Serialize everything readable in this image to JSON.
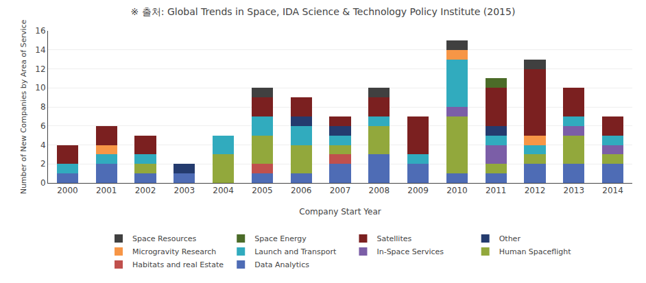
{
  "chart_data": {
    "type": "bar",
    "stacked": true,
    "title": "※ 출처: Global Trends in Space, IDA Science & Technology Policy Institute (2015)",
    "xlabel": "Company Start Year",
    "ylabel": "Number of New Companies by Area of Service",
    "categories": [
      "2000",
      "2001",
      "2002",
      "2003",
      "2004",
      "2005",
      "2006",
      "2007",
      "2008",
      "2009",
      "2010",
      "2011",
      "2012",
      "2013",
      "2014"
    ],
    "series": [
      {
        "name": "Data Analytics",
        "color": "#4E6CB5",
        "values": [
          1,
          2,
          1,
          1,
          0,
          1,
          1,
          2,
          3,
          2,
          1,
          1,
          2,
          2,
          2
        ]
      },
      {
        "name": "Habitats and real Estate",
        "color": "#C0504D",
        "values": [
          0,
          0,
          0,
          0,
          0,
          1,
          0,
          1,
          0,
          0,
          0,
          0,
          0,
          0,
          0
        ]
      },
      {
        "name": "Human Spaceflight",
        "color": "#92A83C",
        "values": [
          0,
          0,
          1,
          0,
          3,
          3,
          3,
          1,
          3,
          0,
          6,
          1,
          1,
          3,
          1
        ]
      },
      {
        "name": "In-Space Services",
        "color": "#7B5EA7",
        "values": [
          0,
          0,
          0,
          0,
          0,
          0,
          0,
          0,
          0,
          0,
          1,
          2,
          0,
          1,
          1
        ]
      },
      {
        "name": "Launch and Transport",
        "color": "#31ABBE",
        "values": [
          1,
          1,
          1,
          0,
          2,
          2,
          2,
          1,
          1,
          1,
          5,
          1,
          1,
          1,
          1
        ]
      },
      {
        "name": "Microgravity Research",
        "color": "#F79646",
        "values": [
          0,
          1,
          0,
          0,
          0,
          0,
          0,
          0,
          0,
          0,
          1,
          0,
          1,
          0,
          0
        ]
      },
      {
        "name": "Other",
        "color": "#243B6E",
        "values": [
          0,
          0,
          0,
          1,
          0,
          0,
          1,
          1,
          0,
          0,
          0,
          1,
          0,
          0,
          0
        ]
      },
      {
        "name": "Satellites",
        "color": "#7B2020",
        "values": [
          2,
          2,
          2,
          0,
          0,
          2,
          2,
          1,
          2,
          4,
          0,
          4,
          7,
          3,
          2
        ]
      },
      {
        "name": "Space Energy",
        "color": "#4B6B28",
        "values": [
          0,
          0,
          0,
          0,
          0,
          0,
          0,
          0,
          0,
          0,
          0,
          1,
          0,
          0,
          0
        ]
      },
      {
        "name": "Space Resources",
        "color": "#404040",
        "values": [
          0,
          0,
          0,
          0,
          0,
          1,
          0,
          0,
          1,
          0,
          1,
          0,
          1,
          0,
          0
        ]
      }
    ],
    "ylim": [
      0,
      16
    ],
    "yticks": [
      0,
      2,
      4,
      6,
      8,
      10,
      12,
      14,
      16
    ],
    "grid": true,
    "legend": "bottom"
  }
}
